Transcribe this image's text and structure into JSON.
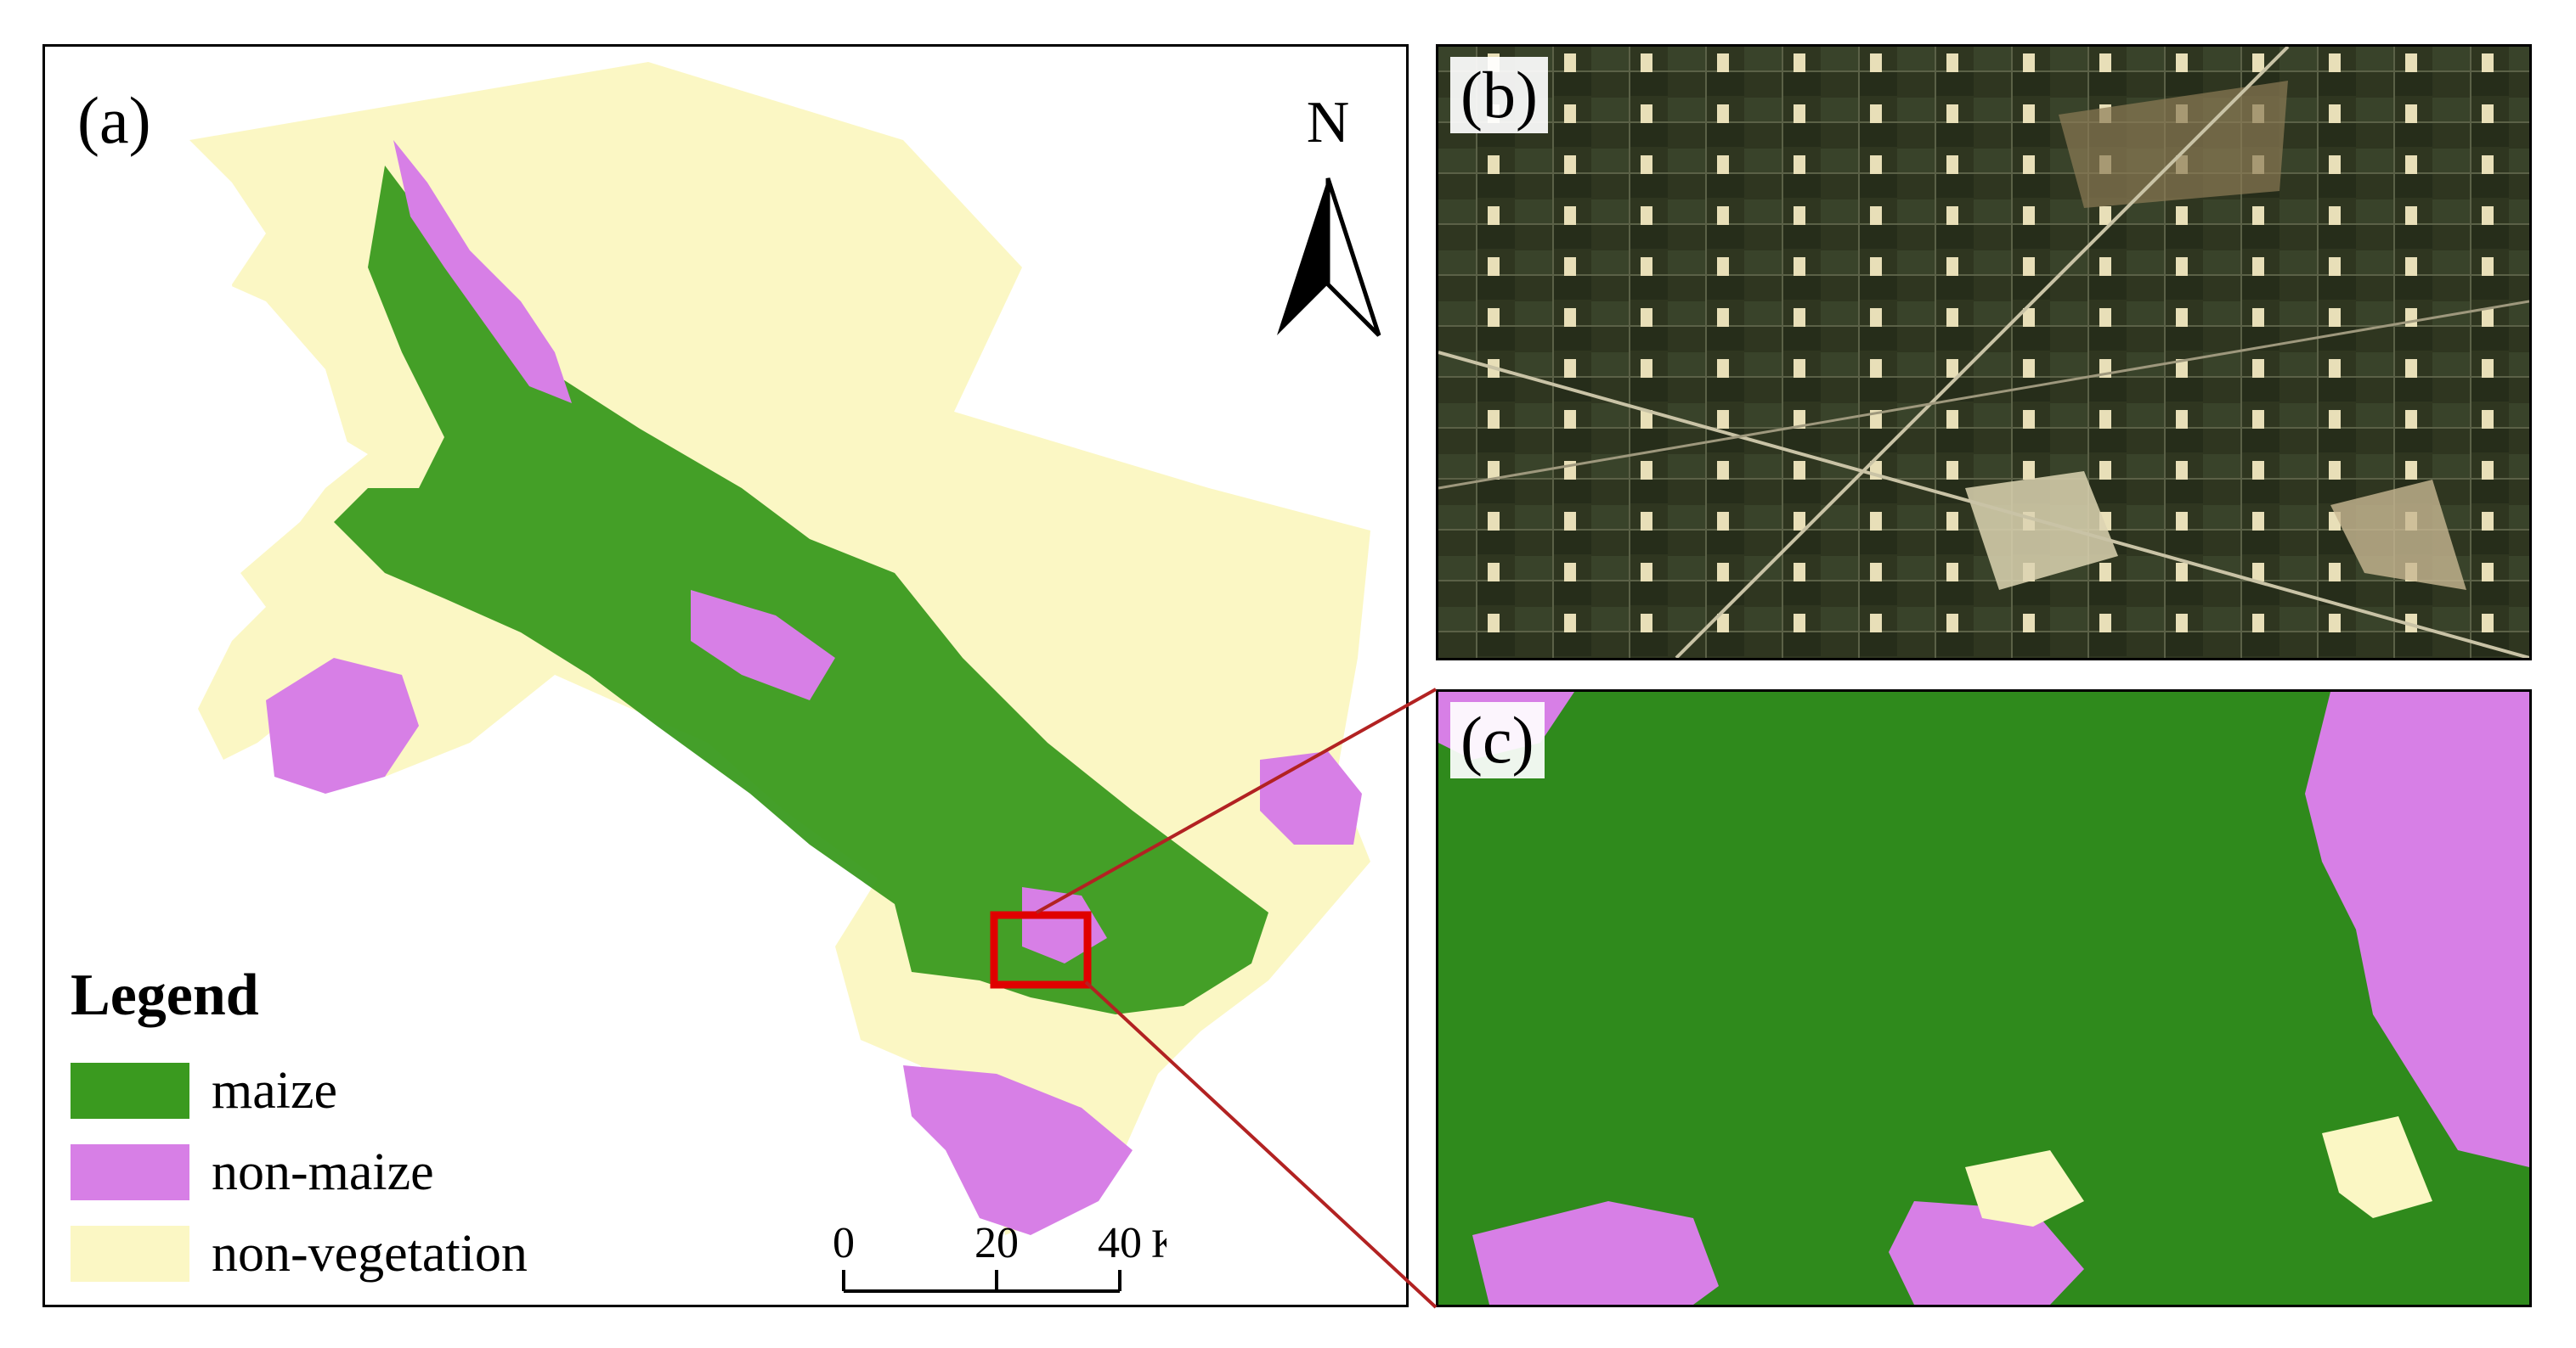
{
  "panels": {
    "a": {
      "label": "(a)"
    },
    "b": {
      "label": "(b)"
    },
    "c": {
      "label": "(c)"
    }
  },
  "legend": {
    "title": "Legend",
    "items": [
      {
        "label": "maize",
        "color": "#3a9a1f"
      },
      {
        "label": "non-maize",
        "color": "#d77fe6"
      },
      {
        "label": "non-vegetation",
        "color": "#fbf7c4"
      }
    ]
  },
  "north_arrow": {
    "label": "N"
  },
  "scale_bar": {
    "ticks": [
      "0",
      "20",
      "40"
    ],
    "unit": "Km"
  },
  "colors": {
    "maize": "#3a9a1f",
    "non_maize": "#d77fe6",
    "non_vegetation": "#fbf7c4",
    "highlight": "#e00000",
    "connector": "#b22222"
  }
}
